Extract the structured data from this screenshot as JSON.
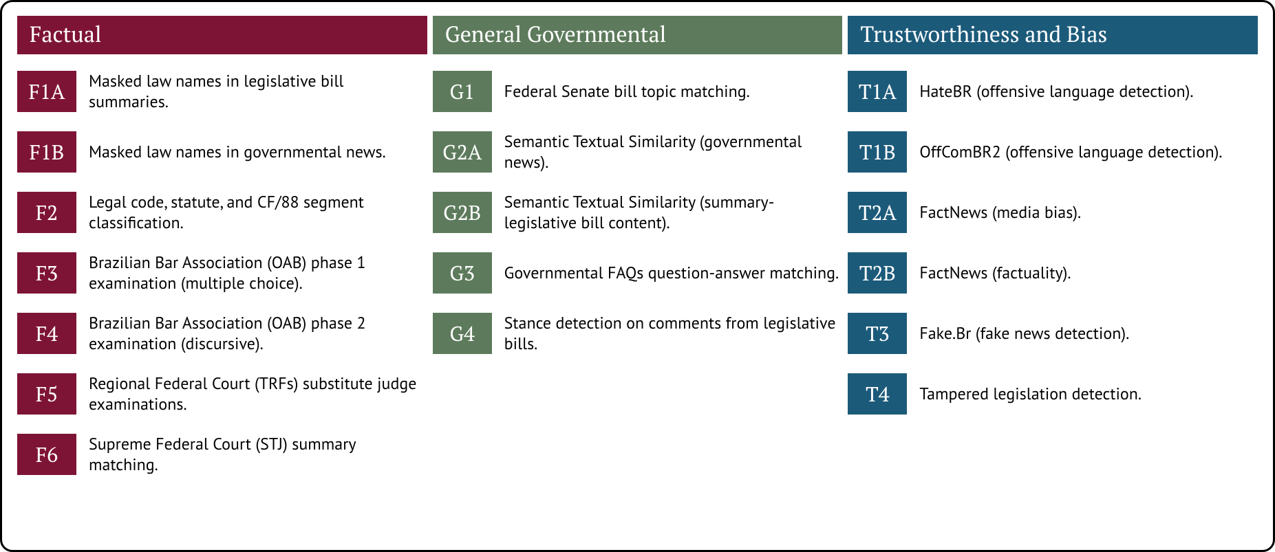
{
  "columns": [
    {
      "title": "Factual",
      "header_color": "#7e1435",
      "badge_color": "#7e1435",
      "items": [
        {
          "code": "F1A",
          "desc": "Masked law names in legislative bill summaries."
        },
        {
          "code": "F1B",
          "desc": "Masked law names in governmental news."
        },
        {
          "code": "F2",
          "desc": "Legal code, statute, and CF/88 segment classification."
        },
        {
          "code": "F3",
          "desc": "Brazilian Bar Association (OAB) phase 1 examination (multiple choice)."
        },
        {
          "code": "F4",
          "desc": "Brazilian Bar Association (OAB) phase 2 examination (discursive)."
        },
        {
          "code": "F5",
          "desc": "Regional Federal Court (TRFs) substitute judge examinations."
        },
        {
          "code": "F6",
          "desc": "Supreme Federal Court (STJ) summary matching."
        }
      ]
    },
    {
      "title": "General Governmental",
      "header_color": "#5d7b5c",
      "badge_color": "#5d7b5c",
      "items": [
        {
          "code": "G1",
          "desc": "Federal Senate bill topic matching."
        },
        {
          "code": "G2A",
          "desc": "Semantic Textual Similarity (governmental news)."
        },
        {
          "code": "G2B",
          "desc": "Semantic Textual Similarity (summary-legislative bill content)."
        },
        {
          "code": "G3",
          "desc": "Governmental FAQs question-answer matching."
        },
        {
          "code": "G4",
          "desc": "Stance detection on comments from legislative bills."
        }
      ]
    },
    {
      "title": "Trustworthiness and Bias",
      "header_color": "#1c5a7a",
      "badge_color": "#1c5a7a",
      "items": [
        {
          "code": "T1A",
          "desc": "HateBR (offensive language detection)."
        },
        {
          "code": "T1B",
          "desc": "OffComBR2 (offensive language detection)."
        },
        {
          "code": "T2A",
          "desc": "FactNews (media bias)."
        },
        {
          "code": "T2B",
          "desc": "FactNews (factuality)."
        },
        {
          "code": "T3",
          "desc": "Fake.Br (fake news detection)."
        },
        {
          "code": "T4",
          "desc": "Tampered legislation detection."
        }
      ]
    }
  ]
}
